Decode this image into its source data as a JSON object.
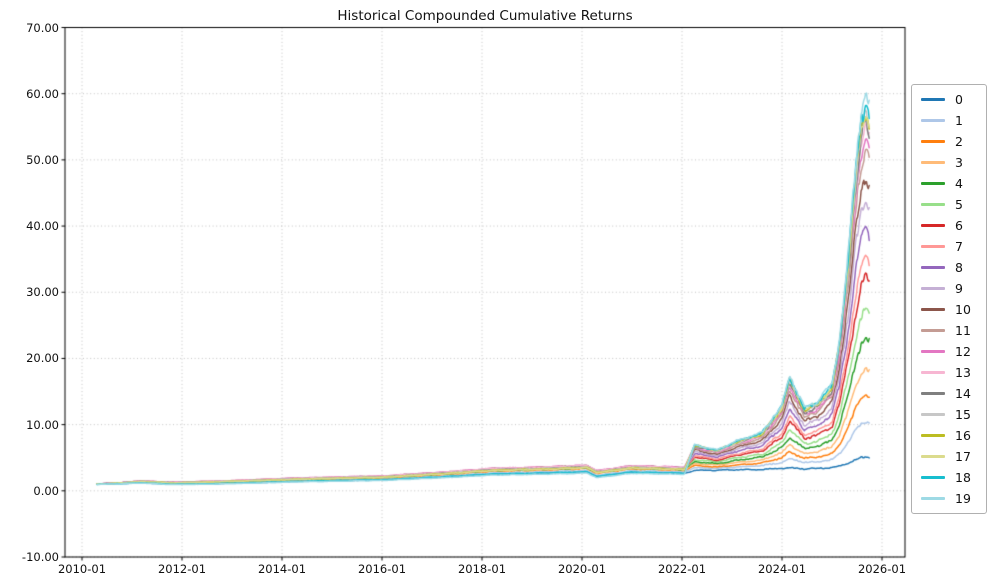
{
  "chart_data": {
    "type": "line",
    "title": "Historical Compounded Cumulative Returns",
    "xlabel": "",
    "ylabel": "",
    "grid": true,
    "legend_position": "right of axes",
    "xlim": [
      2009.66,
      2026.46
    ],
    "ylim": [
      -10,
      70
    ],
    "x_axis": {
      "ticks": [
        2010.0,
        2012.0,
        2014.0,
        2016.0,
        2018.0,
        2020.0,
        2022.0,
        2024.0,
        2026.0
      ],
      "labels": [
        "2010-01",
        "2012-01",
        "2014-01",
        "2016-01",
        "2018-01",
        "2020-01",
        "2022-01",
        "2024-01",
        "2026-01"
      ]
    },
    "y_axis": {
      "ticks": [
        -10,
        0,
        10,
        20,
        30,
        40,
        50,
        60,
        70
      ],
      "labels": [
        "-10.00",
        "0.00",
        "10.00",
        "20.00",
        "30.00",
        "40.00",
        "50.00",
        "60.00",
        "70.00"
      ]
    },
    "x": [
      2010.3,
      2010.75,
      2011.2,
      2011.8,
      2012.3,
      2013.2,
      2014.2,
      2015.0,
      2016.0,
      2017.2,
      2018.2,
      2019.3,
      2020.1,
      2020.3,
      2021.0,
      2022.05,
      2022.25,
      2022.7,
      2023.1,
      2023.6,
      2024.0,
      2024.15,
      2024.45,
      2024.7,
      2025.0,
      2025.15,
      2025.33,
      2025.48,
      2025.58,
      2025.68,
      2025.75
    ],
    "series": [
      {
        "name": "0",
        "color": "#1f77b4",
        "values": [
          0.97,
          1.08,
          1.21,
          0.99,
          1.02,
          1.19,
          1.4,
          1.53,
          1.66,
          2.08,
          2.51,
          2.68,
          2.85,
          2.18,
          2.81,
          2.64,
          3.1,
          3.1,
          3.2,
          3.2,
          3.4,
          3.5,
          3.3,
          3.4,
          3.5,
          3.7,
          4.2,
          4.7,
          5.0,
          5.1,
          5.0
        ]
      },
      {
        "name": "1",
        "color": "#aec7e8",
        "values": [
          0.98,
          1.11,
          1.28,
          1.07,
          1.1,
          1.29,
          1.52,
          1.66,
          1.79,
          2.25,
          2.71,
          2.9,
          3.08,
          2.38,
          3.04,
          2.85,
          3.5,
          3.4,
          3.6,
          3.8,
          4.3,
          4.9,
          4.3,
          4.4,
          4.7,
          5.6,
          7.4,
          9.2,
          10.1,
          10.5,
          10.2
        ]
      },
      {
        "name": "2",
        "color": "#ff7f0e",
        "values": [
          1.0,
          1.15,
          1.35,
          1.15,
          1.2,
          1.4,
          1.65,
          1.8,
          1.95,
          2.45,
          2.95,
          3.15,
          3.35,
          2.65,
          3.3,
          3.1,
          3.8,
          3.6,
          3.9,
          4.2,
          5.0,
          5.9,
          4.9,
          5.1,
          5.6,
          7.0,
          9.7,
          12.5,
          13.9,
          14.5,
          14.0
        ]
      },
      {
        "name": "3",
        "color": "#ffbb78",
        "values": [
          1.0,
          1.16,
          1.37,
          1.17,
          1.22,
          1.43,
          1.68,
          1.84,
          1.99,
          2.5,
          3.01,
          3.21,
          3.42,
          2.7,
          3.37,
          3.16,
          4.1,
          3.9,
          4.3,
          4.6,
          5.8,
          7.0,
          5.6,
          5.9,
          6.6,
          8.5,
          12.1,
          15.9,
          17.9,
          18.6,
          18.0
        ]
      },
      {
        "name": "4",
        "color": "#2ca02c",
        "values": [
          1.01,
          1.17,
          1.39,
          1.19,
          1.25,
          1.46,
          1.72,
          1.87,
          2.03,
          2.55,
          3.07,
          3.28,
          3.48,
          2.76,
          3.43,
          3.22,
          4.4,
          4.1,
          4.6,
          5.1,
          6.5,
          8.1,
          6.4,
          6.7,
          7.6,
          10.1,
          14.7,
          19.6,
          22.1,
          23.1,
          22.3
        ]
      },
      {
        "name": "5",
        "color": "#98df8a",
        "values": [
          1.01,
          1.17,
          1.4,
          1.2,
          1.26,
          1.47,
          1.73,
          1.89,
          2.05,
          2.57,
          3.1,
          3.31,
          3.52,
          2.78,
          3.47,
          3.26,
          4.7,
          4.4,
          5.0,
          5.5,
          7.3,
          9.3,
          7.1,
          7.5,
          8.6,
          11.6,
          17.2,
          23.3,
          26.3,
          27.5,
          26.5
        ]
      },
      {
        "name": "6",
        "color": "#d62728",
        "values": [
          1.01,
          1.18,
          1.41,
          1.22,
          1.28,
          1.5,
          1.77,
          1.93,
          2.09,
          2.62,
          3.16,
          3.37,
          3.58,
          2.84,
          3.53,
          3.32,
          5.1,
          4.6,
          5.4,
          6.0,
          8.1,
          10.5,
          7.9,
          8.4,
          9.7,
          13.3,
          20.0,
          27.1,
          30.7,
          32.2,
          31.0
        ]
      },
      {
        "name": "7",
        "color": "#ff9896",
        "values": [
          1.02,
          1.18,
          1.42,
          1.22,
          1.29,
          1.5,
          1.77,
          1.94,
          2.1,
          2.63,
          3.17,
          3.38,
          3.6,
          2.85,
          3.55,
          3.33,
          5.3,
          4.8,
          5.6,
          6.3,
          8.7,
          11.2,
          8.4,
          9.0,
          10.4,
          14.4,
          21.8,
          29.7,
          33.7,
          35.3,
          34.0
        ]
      },
      {
        "name": "8",
        "color": "#9467bd",
        "values": [
          1.02,
          1.19,
          1.43,
          1.24,
          1.31,
          1.53,
          1.8,
          1.96,
          2.13,
          2.67,
          3.22,
          3.43,
          3.65,
          2.89,
          3.6,
          3.38,
          5.6,
          5.1,
          6.0,
          6.8,
          9.5,
          12.4,
          9.2,
          9.8,
          11.5,
          16.0,
          24.5,
          33.6,
          38.2,
          40.0,
          38.5
        ]
      },
      {
        "name": "9",
        "color": "#c5b0d5",
        "values": [
          1.02,
          1.19,
          1.44,
          1.25,
          1.32,
          1.54,
          1.82,
          1.98,
          2.15,
          2.7,
          3.25,
          3.47,
          3.69,
          2.92,
          3.63,
          3.41,
          5.9,
          5.3,
          6.3,
          7.2,
          10.2,
          13.5,
          9.9,
          10.6,
          12.4,
          17.5,
          26.9,
          37.1,
          42.1,
          44.2,
          42.5
        ]
      },
      {
        "name": "10",
        "color": "#8c564b",
        "values": [
          1.03,
          1.21,
          1.46,
          1.27,
          1.36,
          1.58,
          1.86,
          2.03,
          2.2,
          2.77,
          3.33,
          3.56,
          3.79,
          3.0,
          3.73,
          3.5,
          6.2,
          5.5,
          6.6,
          7.6,
          10.9,
          14.4,
          10.5,
          11.3,
          13.3,
          18.8,
          29.0,
          40.1,
          45.6,
          47.8,
          46.0
        ]
      },
      {
        "name": "11",
        "color": "#c49c94",
        "values": [
          1.03,
          1.21,
          1.46,
          1.28,
          1.36,
          1.58,
          1.87,
          2.04,
          2.21,
          2.78,
          3.34,
          3.57,
          3.8,
          3.01,
          3.74,
          3.51,
          6.4,
          5.7,
          6.9,
          7.9,
          11.5,
          15.4,
          11.1,
          12.0,
          14.1,
          20.1,
          31.2,
          43.1,
          49.1,
          51.5,
          49.5
        ]
      },
      {
        "name": "12",
        "color": "#e377c2",
        "values": [
          1.03,
          1.22,
          1.48,
          1.29,
          1.38,
          1.61,
          1.9,
          2.07,
          2.24,
          2.82,
          3.39,
          3.62,
          3.85,
          3.05,
          3.8,
          3.57,
          6.6,
          5.8,
          7.1,
          8.2,
          11.9,
          15.9,
          11.5,
          12.3,
          14.6,
          20.8,
          32.4,
          44.8,
          51.1,
          53.5,
          51.5
        ]
      },
      {
        "name": "13",
        "color": "#f7b6d2",
        "values": [
          1.03,
          1.21,
          1.47,
          1.28,
          1.37,
          1.6,
          1.88,
          2.05,
          2.22,
          2.79,
          3.36,
          3.59,
          3.82,
          3.02,
          3.76,
          3.53,
          6.7,
          5.9,
          7.2,
          8.3,
          12.2,
          16.3,
          11.7,
          12.6,
          14.9,
          21.3,
          33.3,
          46.1,
          52.5,
          55.1,
          53.0
        ]
      },
      {
        "name": "14",
        "color": "#7f7f7f",
        "values": [
          1.02,
          1.19,
          1.42,
          1.23,
          1.3,
          1.51,
          1.78,
          1.94,
          2.11,
          2.65,
          3.19,
          3.4,
          3.62,
          2.86,
          3.56,
          3.35,
          6.7,
          6.0,
          7.3,
          8.4,
          12.3,
          16.4,
          11.8,
          12.7,
          15.0,
          21.5,
          33.6,
          46.6,
          53.0,
          55.6,
          53.5
        ]
      },
      {
        "name": "15",
        "color": "#c7c7c7",
        "values": [
          1.02,
          1.18,
          1.42,
          1.23,
          1.3,
          1.51,
          1.78,
          1.95,
          2.11,
          2.64,
          3.18,
          3.4,
          3.61,
          2.86,
          3.56,
          3.34,
          6.8,
          6.0,
          7.3,
          8.5,
          12.5,
          16.7,
          12.0,
          12.9,
          15.3,
          21.9,
          34.2,
          47.4,
          54.0,
          56.7,
          54.5
        ]
      },
      {
        "name": "16",
        "color": "#bcbd22",
        "values": [
          1.01,
          1.17,
          1.39,
          1.2,
          1.26,
          1.47,
          1.73,
          1.89,
          2.05,
          2.57,
          3.1,
          3.31,
          3.52,
          2.78,
          3.46,
          3.25,
          6.8,
          6.1,
          7.4,
          8.5,
          12.5,
          16.8,
          12.1,
          13.0,
          15.4,
          22.1,
          34.5,
          47.8,
          54.5,
          57.2,
          55.0
        ]
      },
      {
        "name": "17",
        "color": "#dbdb8d",
        "values": [
          1.01,
          1.17,
          1.38,
          1.19,
          1.25,
          1.46,
          1.71,
          1.87,
          2.03,
          2.55,
          3.07,
          3.27,
          3.48,
          2.75,
          3.43,
          3.22,
          6.9,
          6.1,
          7.4,
          8.6,
          12.6,
          17.0,
          12.2,
          13.1,
          15.5,
          22.3,
          34.8,
          48.3,
          55.0,
          57.7,
          55.5
        ]
      },
      {
        "name": "18",
        "color": "#17becf",
        "values": [
          0.97,
          1.09,
          1.22,
          1.0,
          1.03,
          1.2,
          1.42,
          1.55,
          1.68,
          2.11,
          2.54,
          2.71,
          2.88,
          2.2,
          2.84,
          2.67,
          6.9,
          6.1,
          7.5,
          8.7,
          12.8,
          17.2,
          12.3,
          13.3,
          15.8,
          22.6,
          35.4,
          49.1,
          56.0,
          58.8,
          56.5
        ]
      },
      {
        "name": "19",
        "color": "#9edae5",
        "values": [
          0.96,
          1.06,
          1.16,
          0.94,
          0.96,
          1.12,
          1.32,
          1.44,
          1.56,
          1.96,
          2.36,
          2.52,
          2.68,
          1.99,
          2.64,
          2.48,
          7.0,
          6.2,
          7.6,
          8.8,
          13.0,
          17.5,
          12.5,
          13.5,
          16.0,
          23.0,
          36.0,
          50.0,
          57.0,
          59.8,
          57.5
        ]
      }
    ]
  }
}
